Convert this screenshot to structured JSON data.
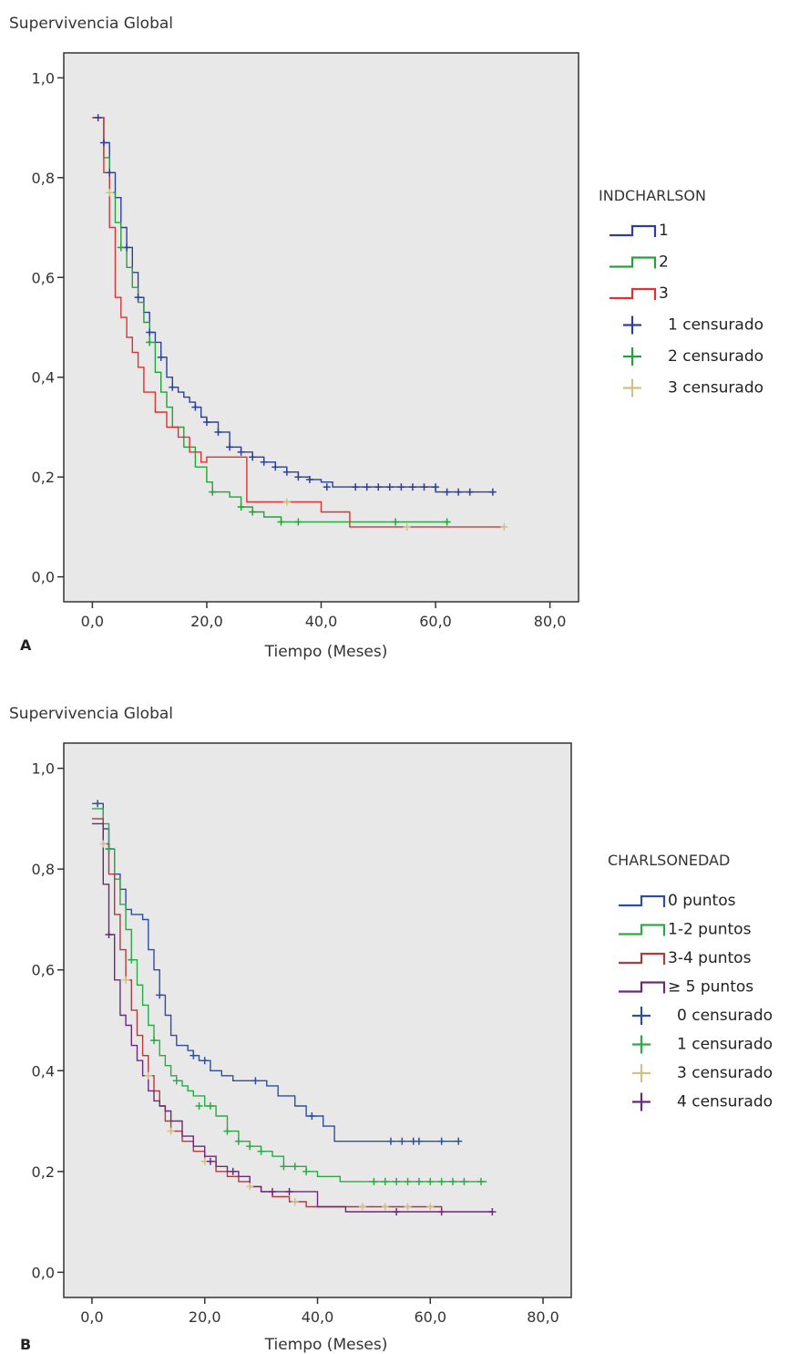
{
  "chart_data": [
    {
      "panel": "A",
      "type": "line",
      "step": true,
      "ylabel": "Supervivencia Global",
      "xlabel": "Tiempo (Meses)",
      "xlim": [
        -5,
        85
      ],
      "ylim": [
        -0.05,
        1.05
      ],
      "xticks": [
        "0,0",
        "20,0",
        "40,0",
        "60,0",
        "80,0"
      ],
      "xtick_values": [
        0,
        20,
        40,
        60,
        80
      ],
      "yticks": [
        "0,0",
        "0,2",
        "0,4",
        "0,6",
        "0,8",
        "1,0"
      ],
      "ytick_values": [
        0,
        0.2,
        0.4,
        0.6,
        0.8,
        1.0
      ],
      "legend_title": "INDCHARLSON",
      "legend_position": "right",
      "grid": false,
      "series": [
        {
          "name": "1",
          "color": "#2c3e9e",
          "x": [
            0,
            1,
            2,
            3,
            4,
            5,
            6,
            7,
            8,
            9,
            10,
            11,
            12,
            13,
            14,
            15,
            16,
            17,
            18,
            19,
            20,
            22,
            24,
            26,
            28,
            30,
            32,
            34,
            36,
            38,
            40,
            42,
            45,
            50,
            55,
            60,
            65,
            70
          ],
          "y": [
            0.92,
            0.92,
            0.87,
            0.81,
            0.76,
            0.7,
            0.66,
            0.61,
            0.56,
            0.53,
            0.49,
            0.47,
            0.44,
            0.4,
            0.38,
            0.37,
            0.36,
            0.35,
            0.34,
            0.32,
            0.31,
            0.29,
            0.26,
            0.25,
            0.24,
            0.23,
            0.22,
            0.21,
            0.2,
            0.195,
            0.19,
            0.18,
            0.18,
            0.18,
            0.18,
            0.17,
            0.17,
            0.17
          ]
        },
        {
          "name": "2",
          "color": "#22a33a",
          "x": [
            0,
            1,
            2,
            3,
            4,
            5,
            6,
            7,
            8,
            9,
            10,
            11,
            12,
            13,
            14,
            16,
            18,
            20,
            21,
            23,
            24,
            26,
            28,
            30,
            33,
            40,
            50,
            62
          ],
          "y": [
            0.92,
            0.92,
            0.84,
            0.77,
            0.71,
            0.66,
            0.62,
            0.58,
            0.55,
            0.51,
            0.47,
            0.41,
            0.37,
            0.34,
            0.3,
            0.26,
            0.22,
            0.19,
            0.17,
            0.17,
            0.16,
            0.14,
            0.13,
            0.12,
            0.11,
            0.11,
            0.11,
            0.11
          ]
        },
        {
          "name": "3",
          "color": "#e03030",
          "x": [
            0,
            1,
            2,
            3,
            4,
            5,
            6,
            7,
            8,
            9,
            11,
            13,
            15,
            17,
            19,
            20,
            27,
            33,
            40,
            45,
            60,
            72
          ],
          "y": [
            0.92,
            0.92,
            0.81,
            0.7,
            0.56,
            0.52,
            0.48,
            0.45,
            0.42,
            0.37,
            0.33,
            0.3,
            0.28,
            0.25,
            0.23,
            0.24,
            0.15,
            0.15,
            0.13,
            0.1,
            0.1,
            0.1
          ]
        }
      ],
      "censored": [
        {
          "name": "1 censurado",
          "color": "#2c3e9e",
          "x": [
            1,
            2,
            3,
            6,
            8,
            10,
            12,
            14,
            18,
            20,
            22,
            24,
            26,
            28,
            30,
            32,
            34,
            36,
            38,
            41,
            46,
            48,
            50,
            52,
            54,
            56,
            58,
            60,
            62,
            64,
            66,
            70
          ],
          "y": [
            0.92,
            0.87,
            0.81,
            0.66,
            0.56,
            0.49,
            0.44,
            0.38,
            0.34,
            0.31,
            0.29,
            0.26,
            0.25,
            0.24,
            0.23,
            0.22,
            0.21,
            0.2,
            0.195,
            0.18,
            0.18,
            0.18,
            0.18,
            0.18,
            0.18,
            0.18,
            0.18,
            0.18,
            0.17,
            0.17,
            0.17,
            0.17
          ]
        },
        {
          "name": "2 censurado",
          "color": "#22a33a",
          "x": [
            5,
            10,
            21,
            26,
            28,
            33,
            36,
            53,
            62
          ],
          "y": [
            0.66,
            0.47,
            0.17,
            0.14,
            0.13,
            0.11,
            0.11,
            0.11,
            0.11
          ]
        },
        {
          "name": "3 censurado",
          "color": "#d2c084",
          "x": [
            3,
            34,
            55,
            72
          ],
          "y": [
            0.77,
            0.15,
            0.1,
            0.1
          ]
        }
      ],
      "legend": [
        {
          "label": "1",
          "kind": "line",
          "color": "#2c3e9e"
        },
        {
          "label": "2",
          "kind": "line",
          "color": "#22a33a"
        },
        {
          "label": "3",
          "kind": "line",
          "color": "#e03030"
        },
        {
          "label": "1 censurado",
          "kind": "cross",
          "color": "#2c3e9e"
        },
        {
          "label": "2 censurado",
          "kind": "cross",
          "color": "#22a33a"
        },
        {
          "label": "3 censurado",
          "kind": "cross",
          "color": "#d2c084"
        }
      ]
    },
    {
      "panel": "B",
      "type": "line",
      "step": true,
      "ylabel": "Supervivencia Global",
      "xlabel": "Tiempo (Meses)",
      "xlim": [
        -5,
        85
      ],
      "ylim": [
        -0.05,
        1.05
      ],
      "xticks": [
        "0,0",
        "20,0",
        "40,0",
        "60,0",
        "80,0"
      ],
      "xtick_values": [
        0,
        20,
        40,
        60,
        80
      ],
      "yticks": [
        "0,0",
        "0,2",
        "0,4",
        "0,6",
        "0,8",
        "1,0"
      ],
      "ytick_values": [
        0,
        0.2,
        0.4,
        0.6,
        0.8,
        1.0
      ],
      "legend_title": "CHARLSONEDAD",
      "legend_position": "right",
      "grid": false,
      "series": [
        {
          "name": "0 puntos",
          "color": "#2c4f9e",
          "x": [
            0,
            1,
            2,
            3,
            4,
            5,
            6,
            7,
            9,
            10,
            11,
            12,
            13,
            14,
            15,
            17,
            18,
            19,
            21,
            23,
            25,
            27,
            29,
            31,
            33,
            36,
            38,
            40,
            41,
            43,
            50,
            60,
            65
          ],
          "y": [
            0.93,
            0.93,
            0.88,
            0.84,
            0.79,
            0.76,
            0.72,
            0.71,
            0.7,
            0.64,
            0.6,
            0.55,
            0.51,
            0.47,
            0.45,
            0.44,
            0.43,
            0.42,
            0.4,
            0.39,
            0.38,
            0.38,
            0.38,
            0.37,
            0.35,
            0.33,
            0.31,
            0.31,
            0.29,
            0.26,
            0.26,
            0.26,
            0.26
          ]
        },
        {
          "name": "1-2 puntos",
          "color": "#2aaa44",
          "x": [
            0,
            1,
            2,
            3,
            4,
            5,
            6,
            7,
            8,
            9,
            10,
            11,
            12,
            13,
            14,
            15,
            16,
            17,
            18,
            20,
            22,
            24,
            26,
            28,
            30,
            32,
            34,
            36,
            38,
            40,
            44,
            50,
            60,
            70
          ],
          "y": [
            0.92,
            0.92,
            0.89,
            0.84,
            0.78,
            0.73,
            0.68,
            0.62,
            0.57,
            0.53,
            0.49,
            0.46,
            0.43,
            0.41,
            0.39,
            0.38,
            0.37,
            0.36,
            0.35,
            0.33,
            0.31,
            0.28,
            0.26,
            0.25,
            0.24,
            0.23,
            0.21,
            0.21,
            0.2,
            0.19,
            0.18,
            0.18,
            0.18,
            0.18
          ]
        },
        {
          "name": "3-4 puntos",
          "color": "#b23a3a",
          "x": [
            0,
            1,
            2,
            3,
            4,
            5,
            6,
            7,
            8,
            9,
            10,
            11,
            12,
            13,
            14,
            16,
            18,
            20,
            22,
            24,
            26,
            28,
            30,
            32,
            35,
            38,
            42,
            50,
            60,
            62
          ],
          "y": [
            0.9,
            0.9,
            0.85,
            0.79,
            0.71,
            0.64,
            0.58,
            0.52,
            0.47,
            0.43,
            0.39,
            0.36,
            0.33,
            0.3,
            0.28,
            0.26,
            0.24,
            0.22,
            0.2,
            0.19,
            0.18,
            0.17,
            0.16,
            0.15,
            0.14,
            0.13,
            0.13,
            0.13,
            0.13,
            0.12
          ]
        },
        {
          "name": "≥ 5 puntos",
          "color": "#6a2a7a",
          "x": [
            0,
            1,
            2,
            3,
            4,
            5,
            6,
            7,
            8,
            9,
            10,
            11,
            12,
            13,
            14,
            16,
            18,
            20,
            22,
            24,
            26,
            28,
            30,
            32,
            35,
            40,
            45,
            50,
            60,
            71
          ],
          "y": [
            0.89,
            0.89,
            0.77,
            0.67,
            0.58,
            0.51,
            0.49,
            0.45,
            0.42,
            0.39,
            0.36,
            0.34,
            0.33,
            0.32,
            0.3,
            0.27,
            0.25,
            0.23,
            0.21,
            0.2,
            0.19,
            0.17,
            0.16,
            0.16,
            0.16,
            0.13,
            0.12,
            0.12,
            0.12,
            0.12
          ]
        }
      ],
      "censored": [
        {
          "name": "0 censurado",
          "color": "#2c4f9e",
          "x": [
            1,
            3,
            12,
            18,
            20,
            29,
            39,
            53,
            55,
            57,
            58,
            62,
            65
          ],
          "y": [
            0.93,
            0.84,
            0.55,
            0.43,
            0.42,
            0.38,
            0.31,
            0.26,
            0.26,
            0.26,
            0.26,
            0.26,
            0.26
          ]
        },
        {
          "name": "1 censurado",
          "color": "#2aaa44",
          "x": [
            3,
            7,
            11,
            15,
            19,
            21,
            24,
            26,
            28,
            30,
            34,
            36,
            38,
            50,
            52,
            54,
            56,
            58,
            60,
            62,
            64,
            66,
            69
          ],
          "y": [
            0.84,
            0.62,
            0.46,
            0.38,
            0.33,
            0.33,
            0.28,
            0.26,
            0.25,
            0.24,
            0.21,
            0.21,
            0.2,
            0.18,
            0.18,
            0.18,
            0.18,
            0.18,
            0.18,
            0.18,
            0.18,
            0.18,
            0.18
          ]
        },
        {
          "name": "3 censurado",
          "color": "#d2c084",
          "x": [
            2,
            6,
            10,
            14,
            20,
            28,
            36,
            48,
            52,
            56,
            60,
            62
          ],
          "y": [
            0.85,
            0.58,
            0.39,
            0.28,
            0.22,
            0.17,
            0.14,
            0.13,
            0.13,
            0.13,
            0.13,
            0.12
          ]
        },
        {
          "name": "4 censurado",
          "color": "#6a2a7a",
          "x": [
            3,
            21,
            25,
            32,
            35,
            54,
            62,
            71
          ],
          "y": [
            0.67,
            0.22,
            0.2,
            0.16,
            0.16,
            0.12,
            0.12,
            0.12
          ]
        }
      ],
      "legend": [
        {
          "label": "0 puntos",
          "kind": "line",
          "color": "#2c4f9e"
        },
        {
          "label": "1-2 puntos",
          "kind": "line",
          "color": "#2aaa44"
        },
        {
          "label": "3-4 puntos",
          "kind": "line",
          "color": "#b23a3a"
        },
        {
          "label": "≥ 5 puntos",
          "kind": "line",
          "color": "#6a2a7a"
        },
        {
          "label": "0 censurado",
          "kind": "cross",
          "color": "#2c4f9e"
        },
        {
          "label": "1 censurado",
          "kind": "cross",
          "color": "#2aaa44"
        },
        {
          "label": "3 censurado",
          "kind": "cross",
          "color": "#d2c084"
        },
        {
          "label": "4 censurado",
          "kind": "cross",
          "color": "#6a2a7a"
        }
      ]
    }
  ]
}
